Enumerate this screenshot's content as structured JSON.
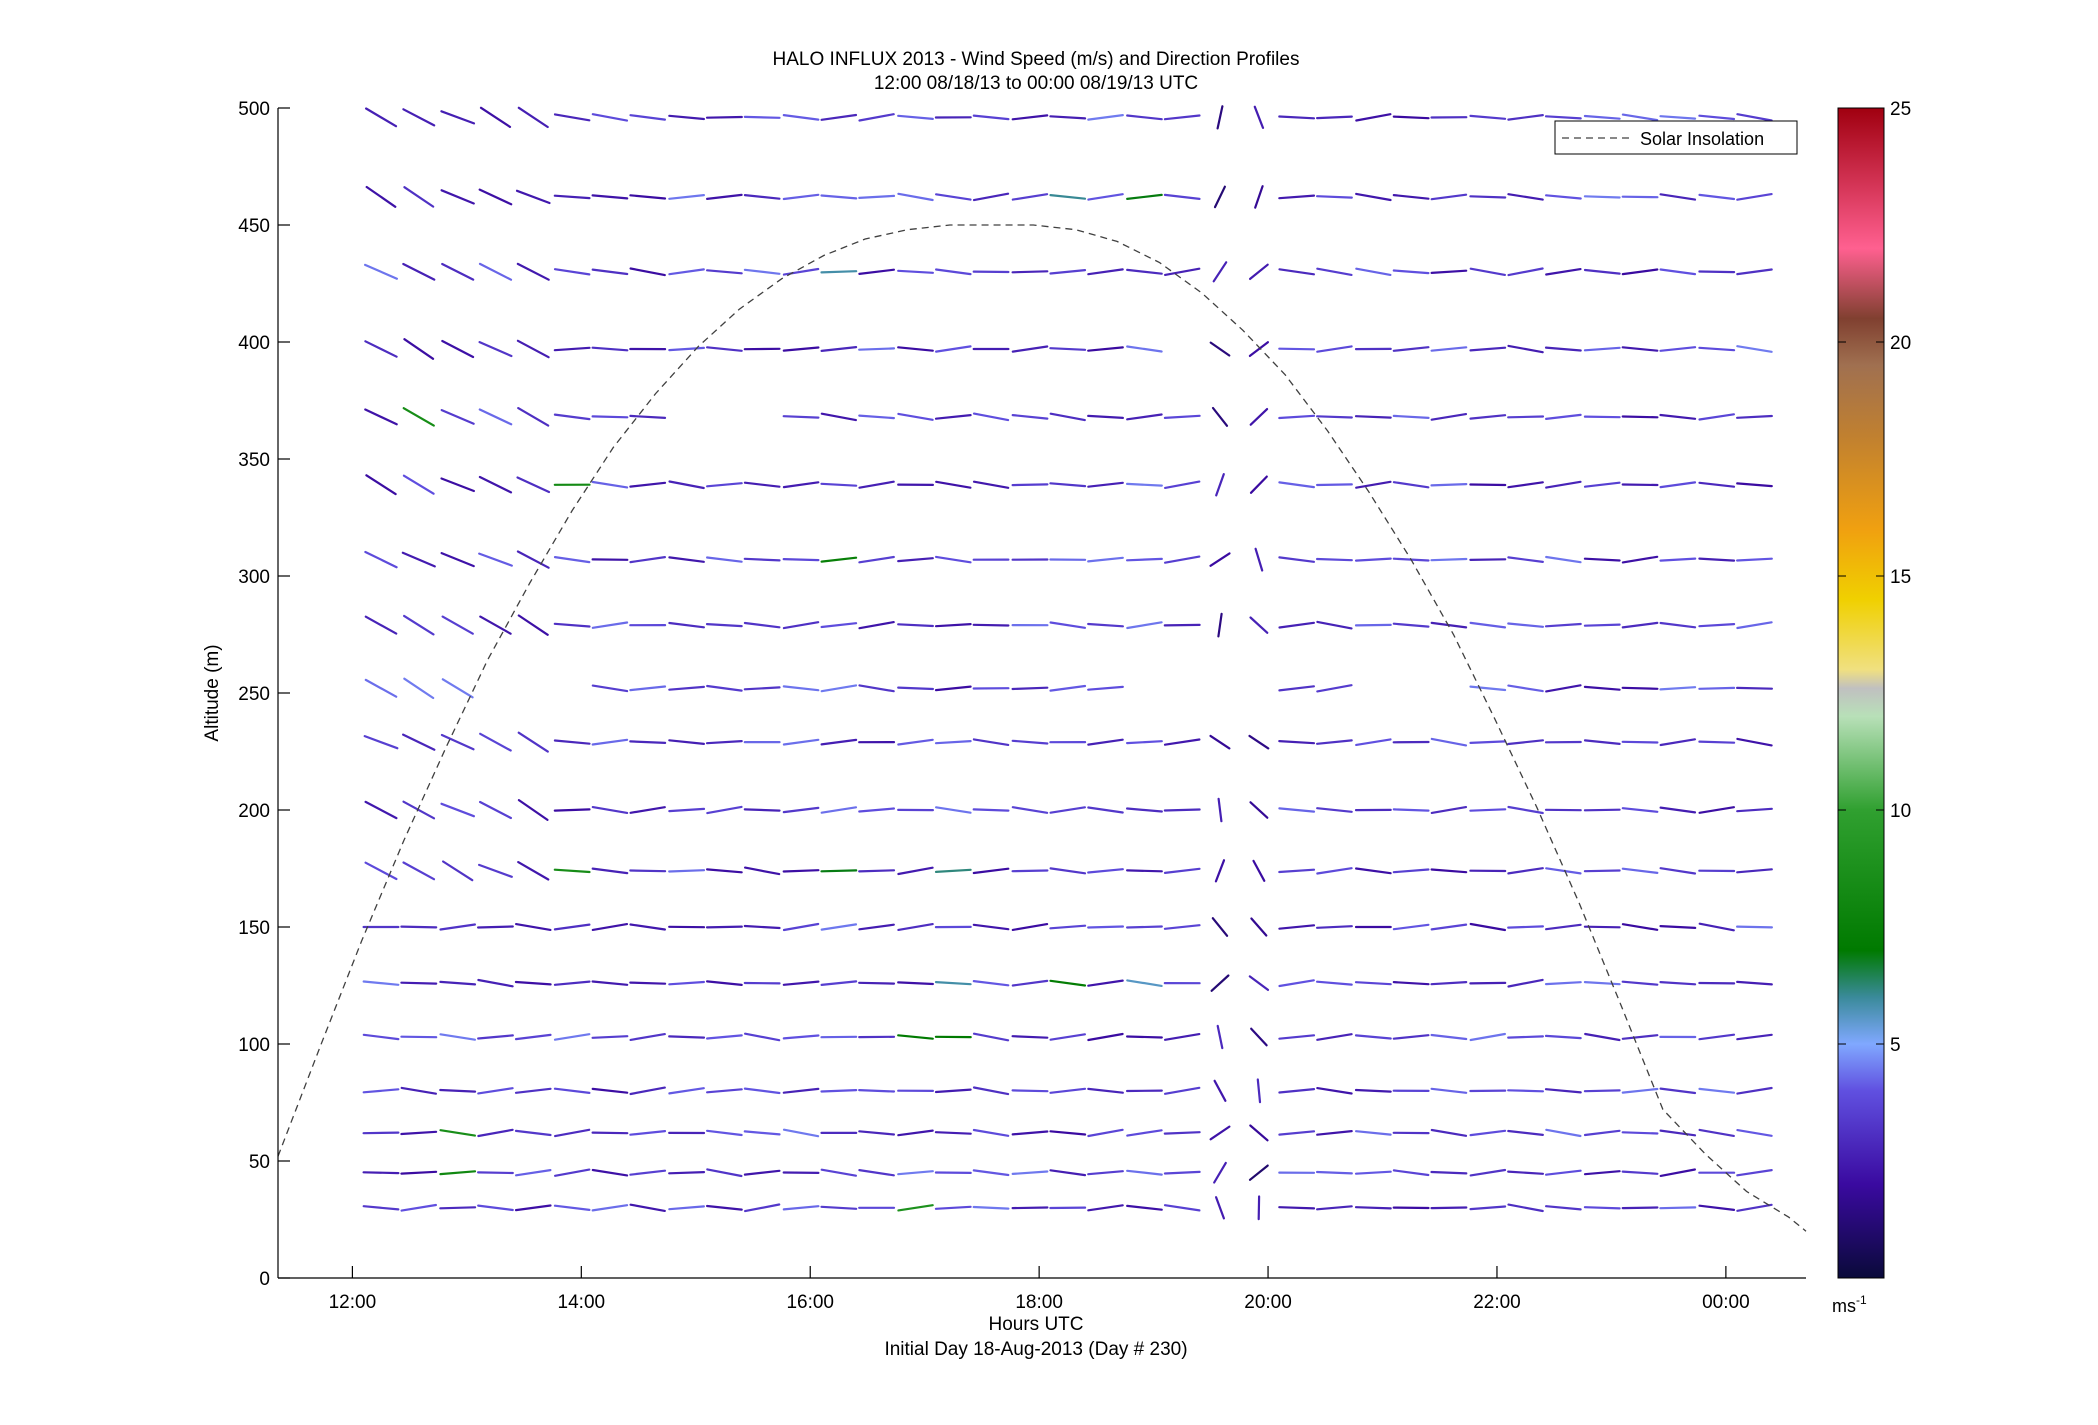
{
  "chart_data": {
    "type": "scatter",
    "title": "HALO INFLUX 2013 - Wind Speed (m/s) and Direction Profiles",
    "subtitle": "12:00 08/18/13 to 00:00 08/19/13  UTC",
    "xlabel": "Hours UTC",
    "xlabel2": "Initial Day 18-Aug-2013 (Day # 230)",
    "ylabel": "Altitude (m)",
    "x_ticks": [
      "12:00",
      "14:00",
      "16:00",
      "18:00",
      "20:00",
      "22:00",
      "00:00"
    ],
    "x_tick_values": [
      12,
      14,
      16,
      18,
      20,
      22,
      24
    ],
    "xlim": [
      11.35,
      24.7
    ],
    "y_ticks": [
      "0",
      "50",
      "100",
      "150",
      "200",
      "250",
      "300",
      "350",
      "400",
      "450",
      "500"
    ],
    "y_tick_values": [
      0,
      50,
      100,
      150,
      200,
      250,
      300,
      350,
      400,
      450,
      500
    ],
    "ylim": [
      0,
      500
    ],
    "grid": false,
    "legend": {
      "position": "top-right",
      "entries": [
        "Solar Insolation"
      ]
    },
    "colorbar": {
      "ticks": [
        "5",
        "10",
        "15",
        "20",
        "25"
      ],
      "tick_values": [
        5,
        10,
        15,
        20,
        25
      ],
      "range": [
        0,
        25
      ],
      "unit": "ms",
      "unit_exp": "-1",
      "stops": [
        {
          "v": 0,
          "color": "#0a0a3a"
        },
        {
          "v": 2,
          "color": "#3a0aa0"
        },
        {
          "v": 4,
          "color": "#6050e0"
        },
        {
          "v": 5,
          "color": "#80a8ff"
        },
        {
          "v": 6,
          "color": "#3a8a9a"
        },
        {
          "v": 7,
          "color": "#007a00"
        },
        {
          "v": 10,
          "color": "#30a030"
        },
        {
          "v": 12,
          "color": "#b8e0b8"
        },
        {
          "v": 12.6,
          "color": "#c0c0c0"
        },
        {
          "v": 13,
          "color": "#f0e080"
        },
        {
          "v": 14.5,
          "color": "#f0d000"
        },
        {
          "v": 16,
          "color": "#f0a010"
        },
        {
          "v": 18,
          "color": "#c08030"
        },
        {
          "v": 19.5,
          "color": "#a07050"
        },
        {
          "v": 20.5,
          "color": "#804030"
        },
        {
          "v": 22,
          "color": "#ff6090"
        },
        {
          "v": 25,
          "color": "#a00010"
        }
      ]
    },
    "solar_insolation": {
      "name": "Solar Insolation",
      "peak_time": 17.85,
      "peak_altitude": 450,
      "x": [
        11.35,
        11.72,
        12.08,
        12.45,
        12.82,
        13.18,
        13.55,
        13.92,
        14.28,
        14.65,
        15.02,
        15.38,
        15.75,
        16.12,
        16.48,
        16.85,
        17.22,
        17.58,
        17.85,
        17.95,
        18.32,
        18.68,
        19.05,
        19.42,
        19.78,
        20.15,
        20.52,
        20.88,
        21.25,
        21.62,
        21.98,
        22.35,
        22.72,
        23.08,
        23.45,
        23.82,
        24.18,
        24.55,
        24.7
      ],
      "y": [
        52,
        99,
        144,
        187,
        227,
        264,
        297,
        328,
        355,
        378,
        398,
        414,
        427,
        437,
        444,
        448,
        450,
        450,
        450,
        450,
        448,
        443,
        434,
        421,
        405,
        386,
        362,
        336,
        307,
        275,
        239,
        201,
        160,
        117,
        72,
        53,
        37,
        26,
        20
      ]
    },
    "wind_barbs": {
      "description_unit": "speed m/s, direction degrees from north",
      "times": [
        12.25,
        12.58,
        12.92,
        13.25,
        13.58,
        13.92,
        14.25,
        14.58,
        14.92,
        15.25,
        15.58,
        15.92,
        16.25,
        16.58,
        16.92,
        17.25,
        17.58,
        17.92,
        18.25,
        18.58,
        18.92,
        19.25,
        19.58,
        19.92,
        20.25,
        20.58,
        20.92,
        21.25,
        21.58,
        21.92,
        22.25,
        22.58,
        22.92,
        23.25,
        23.58,
        23.92,
        24.25
      ],
      "altitudes": [
        30,
        45,
        62,
        80,
        103,
        126,
        150,
        174,
        200,
        229,
        252,
        279,
        307,
        339,
        368,
        397,
        430,
        462,
        496
      ],
      "gaps": [
        {
          "alt": 252,
          "from": 13.2,
          "to": 14.1
        },
        {
          "alt": 252,
          "from": 18.7,
          "to": 20.2
        },
        {
          "alt": 252,
          "from": 20.7,
          "to": 21.9
        },
        {
          "alt": 368,
          "from": 14.9,
          "to": 15.6
        },
        {
          "alt": 397,
          "from": 19.1,
          "to": 19.5
        }
      ]
    }
  }
}
